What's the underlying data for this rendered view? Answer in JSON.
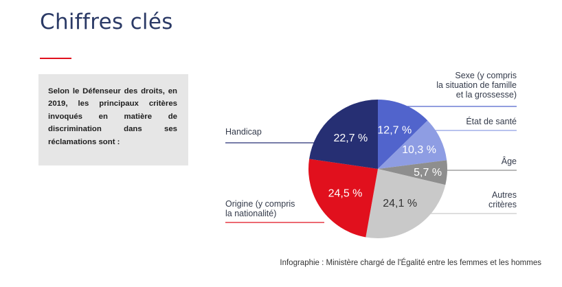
{
  "header": {
    "title": "Chiffres clés",
    "accent_color": "#e1101d"
  },
  "callout": {
    "text": "Selon le Défenseur des droits, en 2019, les principaux critères invoqués en matière de discrimination dans ses réclamations sont :"
  },
  "chart_data": {
    "type": "pie",
    "title": "",
    "slices": [
      {
        "label": "Sexe (y compris\nla situation de famille\net la grossesse)",
        "value": 12.7,
        "value_label": "12,7 %",
        "color": "#5164cc"
      },
      {
        "label": "État de santé",
        "value": 10.3,
        "value_label": "10,3 %",
        "color": "#8e9de3"
      },
      {
        "label": "Âge",
        "value": 5.7,
        "value_label": "5,7 %",
        "color": "#8e8e8e"
      },
      {
        "label": "Autres\ncritères",
        "value": 24.1,
        "value_label": "24,1 %",
        "color": "#c9c9c9"
      },
      {
        "label": "Origine (y compris\nla nationalité)",
        "value": 24.5,
        "value_label": "24,5 %",
        "color": "#e1101d"
      },
      {
        "label": "Handicap",
        "value": 22.7,
        "value_label": "22,7 %",
        "color": "#262f73"
      }
    ]
  },
  "footer": {
    "source": "Infographie : Ministère chargé de l'Égalité entre les femmes et les hommes"
  }
}
